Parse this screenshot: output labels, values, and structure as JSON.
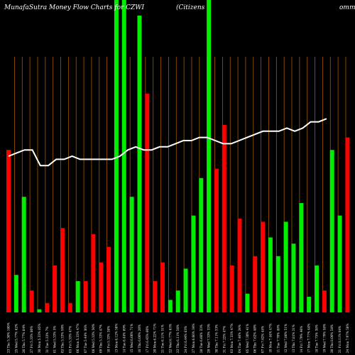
{
  "chart_data": {
    "type": "bar",
    "title_left": "MunafaSutra  Money Flow  Charts for CZWI",
    "title_right": "(Citizens",
    "title_far_right": "ommu",
    "ylim": [
      0,
      100
    ],
    "bar_values": [
      52,
      12,
      37,
      7,
      1,
      3,
      15,
      27,
      3,
      10,
      10,
      25,
      16,
      21,
      100,
      100,
      37,
      95,
      70,
      10,
      16,
      4,
      7,
      14,
      31,
      43,
      100,
      46,
      60,
      15,
      30,
      6,
      18,
      29,
      24,
      18,
      29,
      22,
      35,
      5,
      15,
      7,
      52,
      31,
      56
    ],
    "bar_colors": [
      "#ff0000",
      "#00ee00",
      "#00ee00",
      "#ff0000",
      "#00ee00",
      "#ff0000",
      "#ff0000",
      "#ff0000",
      "#ff0000",
      "#00ee00",
      "#ff0000",
      "#ff0000",
      "#ff0000",
      "#ff0000",
      "#00ee00",
      "#00ee00",
      "#00ee00",
      "#00ee00",
      "#ff0000",
      "#ff0000",
      "#ff0000",
      "#00ee00",
      "#00ee00",
      "#00ee00",
      "#00ee00",
      "#00ee00",
      "#00ee00",
      "#ff0000",
      "#ff0000",
      "#ff0000",
      "#ff0000",
      "#00ee00",
      "#ff0000",
      "#ff0000",
      "#00ee00",
      "#00ee00",
      "#00ee00",
      "#00ee00",
      "#00ee00",
      "#00ee00",
      "#00ee00",
      "#ff0000",
      "#00ee00",
      "#00ee00",
      "#ff0000"
    ],
    "line_values": [
      50,
      51,
      52,
      52,
      47,
      47,
      49,
      49,
      50,
      49,
      49,
      49,
      49,
      49,
      50,
      52,
      53,
      52,
      52,
      53,
      53,
      54,
      55,
      55,
      56,
      56,
      55,
      54,
      54,
      55,
      56,
      57,
      58,
      58,
      58,
      59,
      58,
      59,
      61,
      61,
      62
    ],
    "x_tick_labels": [
      "23 Thu 5.30% 100%",
      "25 Wed 5.77% 62%",
      "26 Thu 5.77% 84%",
      "27 Fri 5.33% 80%",
      "30 Mon 5.33% 85%",
      "31 Tue 5.33% 7%",
      "01 Wed 5.33% 5%",
      "02 Thu 5.33% 59%",
      "03 Fri 5.33% 47%",
      "06 Mon 5.33% 47%",
      "07 Tue 5.44% 36%",
      "08 Wed 5.33% 50%",
      "09 Thu 5.33% 47%",
      "10 Fri 5.33% 38%",
      "13 Mon 6.12% 50%",
      "14 Tue 6.44% 69%",
      "15 Wed 6.00% 71%",
      "16 Thu 6.00% 20%",
      "17 Fri 6.45% 60%",
      "20 Mon 6.22% 71%",
      "21 Tue 6.11% 51%",
      "22 Wed 6.77% 63%",
      "23 Thu 6.11% 56%",
      "24 Fri 6.44% 63%",
      "27 Mon 6.66% 34%",
      "28 Tue 6.66% 33%",
      "29 Wed 7.33% 33%",
      "30 Thu 7.11% 33%",
      "31 Fri 7.22% 47%",
      "03 Mon 7.33% 47%",
      "04 Tue 7.46% 34%",
      "05 Wed 7.30% 41%",
      "06 Thu 7.62% 40%",
      "07 Fri 7.62% 44%",
      "10 Mon 7.44% 47%",
      "11 Tue 7.70% 49%",
      "12 Wed 7.86% 51%",
      "13 Thu 7.81% 31%",
      "14 Fri 7.79% 46%",
      "17 Mon 7.77% 44%",
      "18 Tue 7.75% 38%",
      "19 Wed 7.79% 58%",
      "20 Thu 8.00% 58%",
      "21 Fri 8.11% 64%",
      "24 Mon 7.97% 58%"
    ]
  }
}
